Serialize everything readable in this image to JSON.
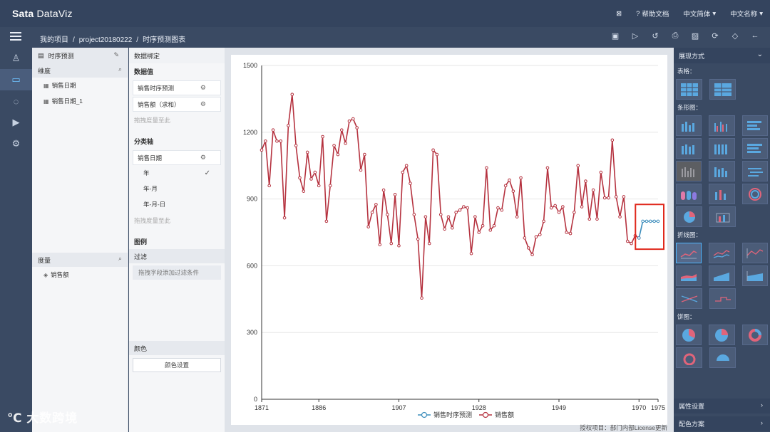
{
  "app": {
    "logo_bold": "Sa",
    "logo_mid": "ta",
    "logo_rest": " DataViz"
  },
  "top": {
    "help": "帮助文档",
    "lang": "中文简体",
    "user": "中文名称"
  },
  "breadcrumb": {
    "home": "我的项目",
    "project": "project20180222",
    "page": "时序预测图表"
  },
  "panel1": {
    "title": "时序预测",
    "dim_label": "维度",
    "dims": [
      "销售日期",
      "销售日期_1"
    ],
    "measure_label": "度量",
    "measures": [
      "销售额"
    ]
  },
  "panel2": {
    "title": "数据绑定",
    "values_label": "数据值",
    "values": [
      "销售时序预测",
      "销售额（求和）"
    ],
    "drop_hint": "拖拽度量至此",
    "axis_label": "分类轴",
    "axis_field": "销售日期",
    "options": [
      "年",
      "年-月",
      "年-月-日"
    ],
    "axis_hint": "拖拽度量至此",
    "legend_label": "图例",
    "filter_label": "过滤",
    "filter_hint": "拖拽字段添加过滤条件",
    "color_label": "颜色",
    "color_btn": "颜色设置"
  },
  "right": {
    "display_label": "展现方式",
    "table_label": "表格：",
    "bar_label": "条形图：",
    "line_label": "折线图：",
    "pie_label": "饼图：",
    "attr_label": "属性设置",
    "scheme_label": "配色方案"
  },
  "license_text": "授权项目：部门内部License更新",
  "watermark": "大数跨境",
  "colors": {
    "actual": "#b5323f",
    "forecast": "#3c8dbc",
    "highlight": "#e0281c"
  },
  "chart_data": {
    "type": "line",
    "ylim": [
      0,
      1500
    ],
    "yticks": [
      0,
      300,
      600,
      900,
      1200,
      1500
    ],
    "xticks": [
      1871,
      1886,
      1907,
      1928,
      1949,
      1970,
      1975
    ],
    "legend": [
      "销售时序预测",
      "销售额"
    ],
    "series": [
      {
        "name": "销售额",
        "x": [
          1871,
          1872,
          1873,
          1874,
          1875,
          1876,
          1877,
          1878,
          1879,
          1880,
          1881,
          1882,
          1883,
          1884,
          1885,
          1886,
          1887,
          1888,
          1889,
          1890,
          1891,
          1892,
          1893,
          1894,
          1895,
          1896,
          1897,
          1898,
          1899,
          1900,
          1901,
          1902,
          1903,
          1904,
          1905,
          1906,
          1907,
          1908,
          1909,
          1910,
          1911,
          1912,
          1913,
          1914,
          1915,
          1916,
          1917,
          1918,
          1919,
          1920,
          1921,
          1922,
          1923,
          1924,
          1925,
          1926,
          1927,
          1928,
          1929,
          1930,
          1931,
          1932,
          1933,
          1934,
          1935,
          1936,
          1937,
          1938,
          1939,
          1940,
          1941,
          1942,
          1943,
          1944,
          1945,
          1946,
          1947,
          1948,
          1949,
          1950,
          1951,
          1952,
          1953,
          1954,
          1955,
          1956,
          1957,
          1958,
          1959,
          1960,
          1961,
          1962,
          1963,
          1964,
          1965,
          1966,
          1967,
          1968,
          1969,
          1970
        ],
        "values": [
          1120,
          1160,
          960,
          1210,
          1160,
          1160,
          815,
          1230,
          1370,
          1140,
          995,
          935,
          1110,
          990,
          1020,
          960,
          1180,
          800,
          960,
          1140,
          1100,
          1210,
          1150,
          1250,
          1260,
          1220,
          1030,
          1100,
          775,
          840,
          875,
          695,
          940,
          830,
          700,
          920,
          690,
          1020,
          1050,
          970,
          830,
          720,
          455,
          820,
          700,
          1120,
          1100,
          830,
          765,
          820,
          770,
          840,
          850,
          865,
          860,
          655,
          820,
          750,
          780,
          1040,
          760,
          780,
          860,
          850,
          960,
          985,
          935,
          820,
          995,
          725,
          680,
          650,
          730,
          740,
          800,
          1040,
          860,
          870,
          840,
          865,
          750,
          745,
          840,
          1050,
          865,
          980,
          810,
          940,
          810,
          1020,
          905,
          905,
          1165,
          910,
          820,
          910,
          710,
          700,
          735,
          725
        ]
      },
      {
        "name": "销售时序预测",
        "x": [
          1970,
          1971,
          1972,
          1973,
          1974,
          1975
        ],
        "values": [
          725,
          800,
          800,
          800,
          800,
          800
        ]
      }
    ]
  }
}
